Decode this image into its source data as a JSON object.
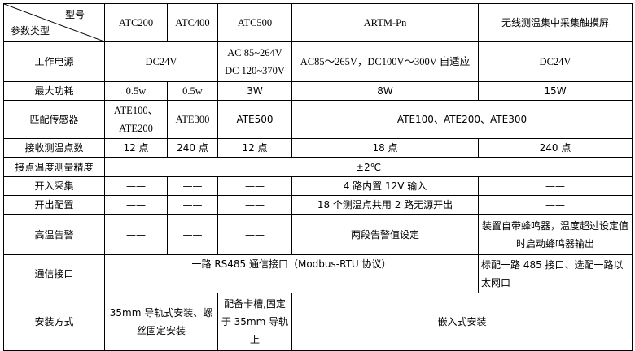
{
  "header": {
    "corner_top": "型号",
    "corner_bottom": "参数类型",
    "models": [
      "ATC200",
      "ATC400",
      "ATC500",
      "ARTM-Pn",
      "无线测温集中采集触摸屏"
    ]
  },
  "rows": {
    "power": {
      "label": "工作电源",
      "atc200_400": "DC24V",
      "atc500_l1": "AC 85~264V",
      "atc500_l2": "DC 120~370V",
      "artm": "AC85～265V，DC100V～300V 自适应",
      "screen": "DC24V"
    },
    "consumption": {
      "label": "最大功耗",
      "atc200": "0.5w",
      "atc400": "0.5w",
      "atc500": "3W",
      "artm": "8W",
      "screen": "15W"
    },
    "sensor": {
      "label": "匹配传感器",
      "atc200": "ATE100、ATE200",
      "atc400": "ATE300",
      "atc500": "ATE500",
      "artm_screen": "ATE100、ATE200、ATE300"
    },
    "points": {
      "label": "接收测温点数",
      "atc200": "12 点",
      "atc400": "240 点",
      "atc500": "12 点",
      "artm": "18 点",
      "screen": "240 点"
    },
    "accuracy": {
      "label": "接点温度测量精度",
      "value": "±2℃"
    },
    "input": {
      "label": "开入采集",
      "atc200": "——",
      "atc400": "——",
      "atc500": "——",
      "artm": "4 路内置 12V 输入",
      "screen": "——"
    },
    "output": {
      "label": "开出配置",
      "atc200": "——",
      "atc400": "——",
      "atc500": "——",
      "artm": "18 个测温点共用 2 路无源开出",
      "screen": "——"
    },
    "alarm": {
      "label": "高温告警",
      "atc200": "——",
      "atc400": "——",
      "atc500": "——",
      "artm": "两段告警值设定",
      "screen": "装置自带蜂鸣器，温度超过设定值时启动蜂鸣器输出"
    },
    "comm": {
      "label": "通信接口",
      "atc_artm": "一路 RS485 通信接口（Modbus-RTU 协议）",
      "screen": "标配一路 485 接口、选配一路以太网口"
    },
    "install": {
      "label": "安装方式",
      "atc200_400": "35mm 导轨式安装、螺丝固定安装",
      "atc500": "配备卡槽,固定于 35mm 导轨上",
      "artm_screen": "嵌入式安装"
    }
  }
}
